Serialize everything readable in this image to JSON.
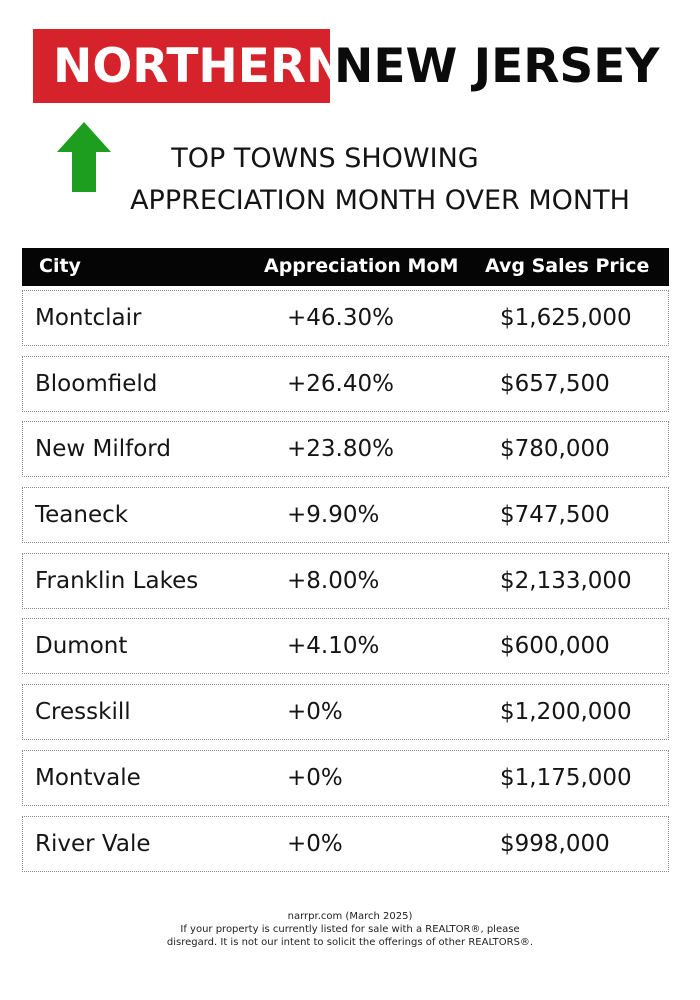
{
  "title": {
    "highlight": "NORTHERN",
    "rest": "NEW JERSEY"
  },
  "colors": {
    "brand_red": "#d6222b",
    "arrow_green": "#1e9e1e",
    "header_black": "#050505"
  },
  "arrow_icon": "green-up-arrow-icon",
  "subtitle": {
    "line1": "TOP TOWNS SHOWING",
    "line2": "APPRECIATION MONTH OVER MONTH"
  },
  "table": {
    "headers": {
      "city": "City",
      "appreciation": "Appreciation MoM",
      "price": "Avg Sales Price"
    },
    "rows": [
      {
        "city": "Montclair",
        "appreciation": "+46.30%",
        "price": "$1,625,000"
      },
      {
        "city": "Bloomfield",
        "appreciation": "+26.40%",
        "price": "$657,500"
      },
      {
        "city": "New Milford",
        "appreciation": "+23.80%",
        "price": "$780,000"
      },
      {
        "city": "Teaneck",
        "appreciation": "+9.90%",
        "price": "$747,500"
      },
      {
        "city": "Franklin Lakes",
        "appreciation": "+8.00%",
        "price": "$2,133,000"
      },
      {
        "city": "Dumont",
        "appreciation": "+4.10%",
        "price": "$600,000"
      },
      {
        "city": "Cresskill",
        "appreciation": "+0%",
        "price": "$1,200,000"
      },
      {
        "city": "Montvale",
        "appreciation": "+0%",
        "price": "$1,175,000"
      },
      {
        "city": "River Vale",
        "appreciation": "+0%",
        "price": "$998,000"
      }
    ]
  },
  "footer": {
    "source": "narrpr.com (March 2025)",
    "disclaimer_line1": "If your property is currently listed for sale with a REALTOR®, please",
    "disclaimer_line2": "disregard. It is not our intent to solicit the offerings of other REALTORS®."
  }
}
